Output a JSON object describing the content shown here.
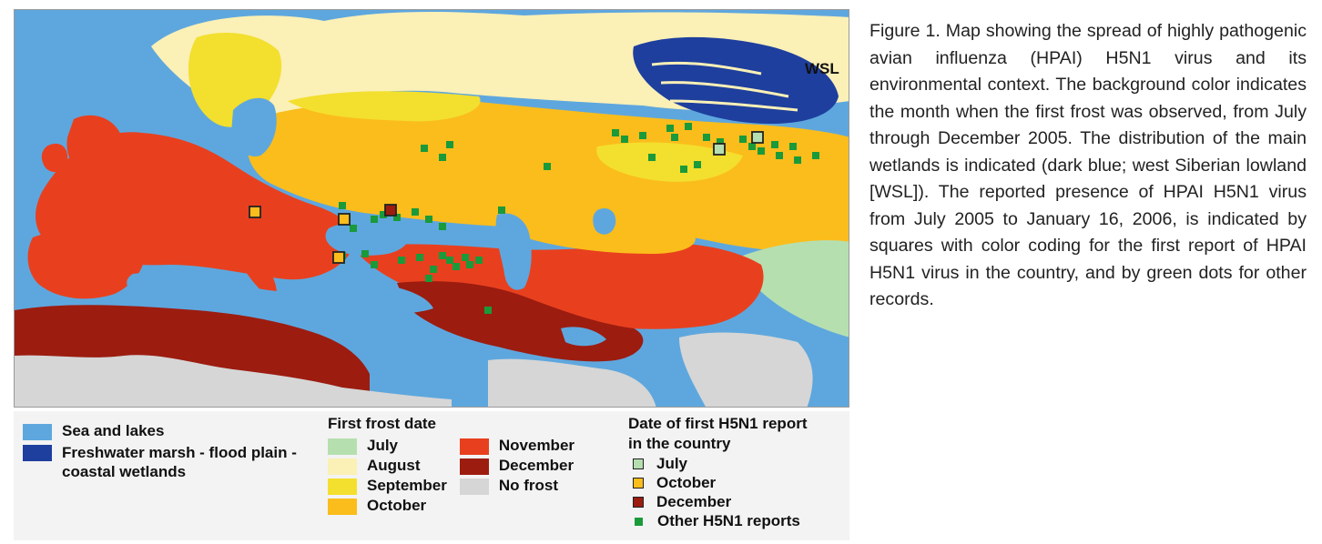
{
  "map": {
    "label_wsl": "WSL",
    "colors": {
      "sea": "#5ea7de",
      "wetland": "#1e3f9e",
      "july": "#b6dfb0",
      "august": "#fbf0b6",
      "september": "#f3df2e",
      "october": "#fbbd1c",
      "november": "#e8401e",
      "december": "#9c1c10",
      "nofrost": "#d6d6d6",
      "report_green": "#1a9a3a"
    }
  },
  "caption": "Figure 1. Map showing the spread of highly pathogenic avian influenza (HPAI) H5N1 virus and its environmental context. The background color indicates the month when the first frost was observed, from July through December 2005. The distribution of the main wetlands is indicated (dark blue; west Siberian lowland [WSL]). The reported presence of HPAI H5N1 virus from July 2005 to January 16, 2006, is indicated by squares with color coding for the first report of HPAI H5N1 virus in the country, and by green dots for other records.",
  "legend": {
    "sea": "Sea and lakes",
    "wetland_line1": "Freshwater marsh - flood plain -",
    "wetland_line2": "coastal wetlands",
    "frost_title": "First frost date",
    "frost_items": [
      "July",
      "August",
      "September",
      "October",
      "November",
      "December",
      "No frost"
    ],
    "report_title_line1": "Date of first H5N1 report",
    "report_title_line2": "in the country",
    "report_items": [
      "July",
      "October",
      "December",
      "Other H5N1 reports"
    ]
  }
}
